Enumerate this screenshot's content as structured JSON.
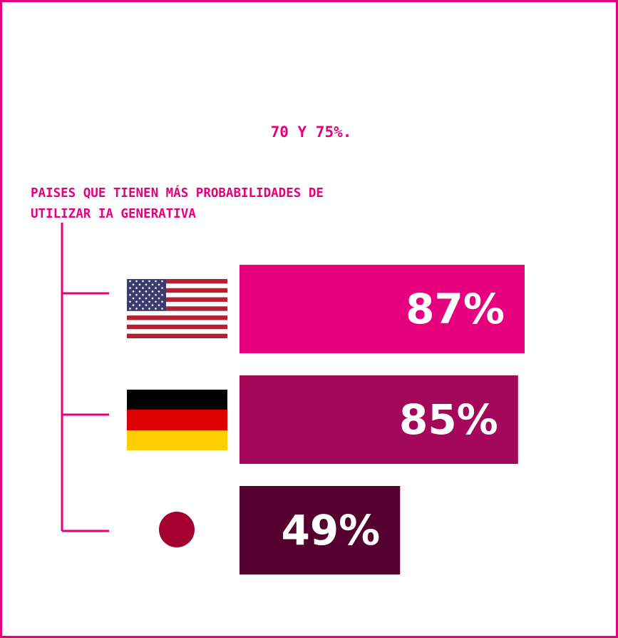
{
  "note": "70 Y 75%.",
  "chart_data": {
    "type": "bar",
    "orientation": "horizontal",
    "title_lines": [
      "PAISES QUE TIENEN MÁS PROBABILIDADES DE",
      "UTILIZAR IA GENERATIVA"
    ],
    "categories": [
      "us-flag",
      "germany-flag",
      "japan-flag"
    ],
    "values": [
      87,
      85,
      49
    ],
    "value_labels": [
      "87%",
      "85%",
      "49%"
    ],
    "bar_colors": [
      "#e6007e",
      "#a3085a",
      "#560030"
    ],
    "xlim": [
      0,
      100
    ],
    "grid": false,
    "legend": "none"
  },
  "colors": {
    "accent": "#e6007e",
    "japan_circle": "#a30030"
  }
}
